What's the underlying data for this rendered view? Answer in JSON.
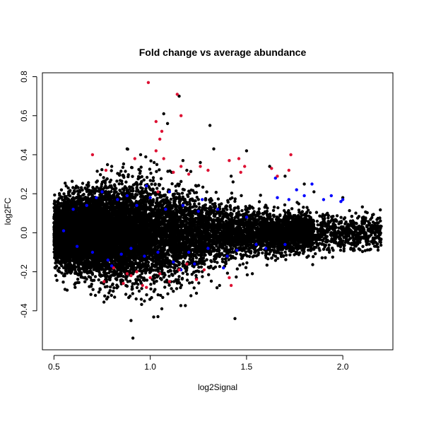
{
  "chart_data": {
    "type": "scatter",
    "title": "Fold change vs average abundance",
    "xlabel": "log2Signal",
    "ylabel": "log2FC",
    "xlim": [
      0.44,
      2.26
    ],
    "ylim": [
      -0.6,
      0.82
    ],
    "x_ticks": [
      "0.5",
      "1.0",
      "1.5",
      "2.0"
    ],
    "y_ticks": [
      "-0.4",
      "-0.2",
      "0.0",
      "0.2",
      "0.4",
      "0.6",
      "0.8"
    ],
    "grid": false,
    "legend": "none",
    "colors": {
      "black": "#000000",
      "blue": "#0000ff",
      "red": "#dd1133"
    },
    "series": [
      {
        "color": "black",
        "points": [
          [
            0.95,
            0.4
          ],
          [
            0.88,
            0.43
          ],
          [
            0.8,
            0.34
          ],
          [
            1.07,
            0.61
          ],
          [
            1.09,
            0.56
          ],
          [
            1.31,
            0.55
          ],
          [
            1.33,
            0.43
          ],
          [
            1.5,
            0.42
          ],
          [
            1.17,
            0.37
          ],
          [
            1.26,
            0.36
          ],
          [
            1.62,
            0.34
          ],
          [
            1.8,
            0.25
          ],
          [
            1.85,
            0.21
          ],
          [
            2.0,
            0.18
          ],
          [
            0.9,
            -0.45
          ],
          [
            1.06,
            -0.39
          ],
          [
            1.04,
            -0.43
          ],
          [
            0.91,
            -0.54
          ],
          [
            1.44,
            -0.44
          ],
          [
            0.78,
            -0.33
          ],
          [
            1.24,
            -0.31
          ],
          [
            1.36,
            -0.27
          ],
          [
            1.63,
            -0.13
          ],
          [
            2.1,
            0.05
          ],
          [
            2.18,
            0.02
          ],
          [
            2.16,
            -0.03
          ],
          [
            2.08,
            -0.05
          ],
          [
            0.6,
            0.18
          ],
          [
            0.62,
            -0.15
          ],
          [
            0.74,
            -0.22
          ],
          [
            1.15,
            0.7
          ],
          [
            1.02,
            0.36
          ],
          [
            1.19,
            0.32
          ],
          [
            1.42,
            0.29
          ],
          [
            1.7,
            0.29
          ],
          [
            0.97,
            -0.35
          ],
          [
            1.12,
            -0.3
          ],
          [
            1.53,
            -0.21
          ],
          [
            1.92,
            0.1
          ],
          [
            1.95,
            -0.09
          ]
        ]
      },
      {
        "color": "blue",
        "points": [
          [
            0.55,
            0.01
          ],
          [
            0.6,
            0.12
          ],
          [
            0.62,
            -0.07
          ],
          [
            0.67,
            0.14
          ],
          [
            0.7,
            -0.1
          ],
          [
            0.72,
            0.18
          ],
          [
            0.75,
            0.21
          ],
          [
            0.78,
            -0.14
          ],
          [
            0.83,
            0.17
          ],
          [
            0.85,
            -0.11
          ],
          [
            0.88,
            0.19
          ],
          [
            0.9,
            -0.08
          ],
          [
            0.93,
            0.14
          ],
          [
            0.97,
            -0.12
          ],
          [
            1.0,
            0.18
          ],
          [
            1.04,
            -0.1
          ],
          [
            1.08,
            0.12
          ],
          [
            1.12,
            -0.15
          ],
          [
            1.17,
            0.14
          ],
          [
            1.2,
            -0.1
          ],
          [
            1.25,
            0.11
          ],
          [
            1.3,
            -0.08
          ],
          [
            1.35,
            0.12
          ],
          [
            1.4,
            -0.12
          ],
          [
            1.45,
            -0.09
          ],
          [
            1.5,
            0.08
          ],
          [
            1.55,
            -0.06
          ],
          [
            1.6,
            -0.08
          ],
          [
            1.66,
            0.18
          ],
          [
            1.72,
            0.17
          ],
          [
            1.76,
            0.22
          ],
          [
            1.8,
            0.19
          ],
          [
            1.84,
            0.25
          ],
          [
            1.9,
            0.17
          ],
          [
            1.94,
            0.19
          ],
          [
            1.99,
            0.16
          ],
          [
            2.0,
            0.17
          ],
          [
            1.65,
            0.28
          ],
          [
            1.7,
            -0.06
          ],
          [
            0.98,
            0.24
          ],
          [
            1.1,
            0.21
          ],
          [
            1.27,
            0.17
          ],
          [
            1.16,
            -0.19
          ],
          [
            0.8,
            -0.17
          ],
          [
            1.23,
            -0.16
          ],
          [
            1.38,
            -0.18
          ]
        ]
      },
      {
        "color": "red",
        "points": [
          [
            0.99,
            0.77
          ],
          [
            1.14,
            0.71
          ],
          [
            1.16,
            0.6
          ],
          [
            1.06,
            0.52
          ],
          [
            1.03,
            0.57
          ],
          [
            1.05,
            0.48
          ],
          [
            0.7,
            0.4
          ],
          [
            0.92,
            0.38
          ],
          [
            1.03,
            0.42
          ],
          [
            1.07,
            0.38
          ],
          [
            1.12,
            0.31
          ],
          [
            1.16,
            0.34
          ],
          [
            1.2,
            0.3
          ],
          [
            1.26,
            0.34
          ],
          [
            1.3,
            0.32
          ],
          [
            1.41,
            0.37
          ],
          [
            1.46,
            0.38
          ],
          [
            1.47,
            0.31
          ],
          [
            1.49,
            0.34
          ],
          [
            1.63,
            0.33
          ],
          [
            1.66,
            0.29
          ],
          [
            1.72,
            0.32
          ],
          [
            1.73,
            0.4
          ],
          [
            0.77,
            0.32
          ],
          [
            1.04,
            0.21
          ],
          [
            0.76,
            -0.25
          ],
          [
            0.81,
            -0.18
          ],
          [
            0.86,
            -0.26
          ],
          [
            0.9,
            -0.22
          ],
          [
            0.93,
            -0.2
          ],
          [
            0.96,
            -0.27
          ],
          [
            1.0,
            -0.23
          ],
          [
            1.05,
            -0.21
          ],
          [
            1.1,
            -0.25
          ],
          [
            1.15,
            -0.19
          ],
          [
            1.24,
            -0.24
          ],
          [
            1.28,
            -0.19
          ],
          [
            1.41,
            -0.23
          ],
          [
            1.42,
            -0.27
          ],
          [
            0.98,
            -0.28
          ],
          [
            1.19,
            -0.16
          ],
          [
            0.88,
            -0.21
          ]
        ]
      }
    ],
    "dense_cloud": {
      "color": "black",
      "count": 13000,
      "x_range": [
        0.5,
        2.2
      ],
      "y_center": 0.0
    }
  }
}
